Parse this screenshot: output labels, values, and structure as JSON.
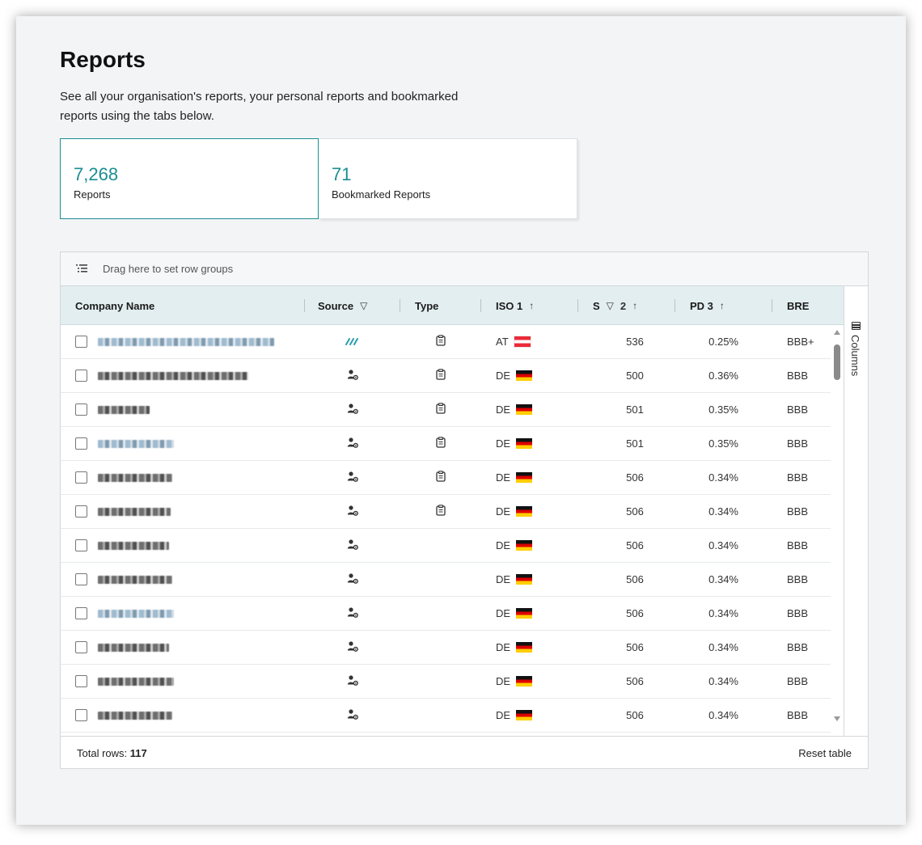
{
  "page": {
    "title": "Reports",
    "subtitle": "See all your organisation's reports, your personal reports and bookmarked reports using the tabs below."
  },
  "tiles": [
    {
      "count": "7,268",
      "label": "Reports",
      "active": true
    },
    {
      "count": "71",
      "label": "Bookmarked Reports",
      "active": false
    }
  ],
  "grid": {
    "group_bar_text": "Drag here to set row groups",
    "columns": [
      {
        "label": "Company Name",
        "icon": ""
      },
      {
        "label": "Source",
        "icon": "filter-icon"
      },
      {
        "label": "Type",
        "icon": ""
      },
      {
        "label": "ISO 1",
        "icon": "sort-asc-icon"
      },
      {
        "label": "S",
        "icon": "filter-icon sort-asc-icon",
        "sort_index": "2"
      },
      {
        "label": "PD 3",
        "icon": "sort-asc-icon"
      },
      {
        "label": "BRE",
        "icon": ""
      }
    ],
    "side_panel_label": "Columns",
    "rows": [
      {
        "name_style": "light",
        "name_width": 218,
        "source": "stripes-icon",
        "type": "clipboard-icon",
        "iso": "AT",
        "score": "536",
        "pd": "0.25%",
        "rating": "BBB+"
      },
      {
        "name_style": "dark",
        "name_width": 186,
        "source": "user-gear-icon",
        "type": "clipboard-icon",
        "iso": "DE",
        "score": "500",
        "pd": "0.36%",
        "rating": "BBB"
      },
      {
        "name_style": "dark",
        "name_width": 64,
        "source": "user-gear-icon",
        "type": "clipboard-icon",
        "iso": "DE",
        "score": "501",
        "pd": "0.35%",
        "rating": "BBB"
      },
      {
        "name_style": "light",
        "name_width": 94,
        "source": "user-gear-icon",
        "type": "clipboard-icon",
        "iso": "DE",
        "score": "501",
        "pd": "0.35%",
        "rating": "BBB"
      },
      {
        "name_style": "dark",
        "name_width": 92,
        "source": "user-gear-icon",
        "type": "clipboard-icon",
        "iso": "DE",
        "score": "506",
        "pd": "0.34%",
        "rating": "BBB"
      },
      {
        "name_style": "dark",
        "name_width": 90,
        "source": "user-gear-icon",
        "type": "clipboard-icon",
        "iso": "DE",
        "score": "506",
        "pd": "0.34%",
        "rating": "BBB"
      },
      {
        "name_style": "dark",
        "name_width": 88,
        "source": "user-gear-icon",
        "type": "",
        "iso": "DE",
        "score": "506",
        "pd": "0.34%",
        "rating": "BBB"
      },
      {
        "name_style": "dark",
        "name_width": 92,
        "source": "user-gear-icon",
        "type": "",
        "iso": "DE",
        "score": "506",
        "pd": "0.34%",
        "rating": "BBB"
      },
      {
        "name_style": "light",
        "name_width": 94,
        "source": "user-gear-icon",
        "type": "",
        "iso": "DE",
        "score": "506",
        "pd": "0.34%",
        "rating": "BBB"
      },
      {
        "name_style": "dark",
        "name_width": 88,
        "source": "user-gear-icon",
        "type": "",
        "iso": "DE",
        "score": "506",
        "pd": "0.34%",
        "rating": "BBB"
      },
      {
        "name_style": "dark",
        "name_width": 94,
        "source": "user-gear-icon",
        "type": "",
        "iso": "DE",
        "score": "506",
        "pd": "0.34%",
        "rating": "BBB"
      },
      {
        "name_style": "dark",
        "name_width": 92,
        "source": "user-gear-icon",
        "type": "",
        "iso": "DE",
        "score": "506",
        "pd": "0.34%",
        "rating": "BBB"
      }
    ]
  },
  "footer": {
    "total_label": "Total rows:",
    "total_value": "117",
    "reset_label": "Reset table"
  },
  "colors": {
    "accent": "#1b8e92",
    "header_bg": "#e3eef0",
    "flag_de": [
      "#111111",
      "#dd0000",
      "#ffce00"
    ],
    "flag_at": [
      "#ed2939",
      "#ffffff",
      "#ed2939"
    ]
  }
}
